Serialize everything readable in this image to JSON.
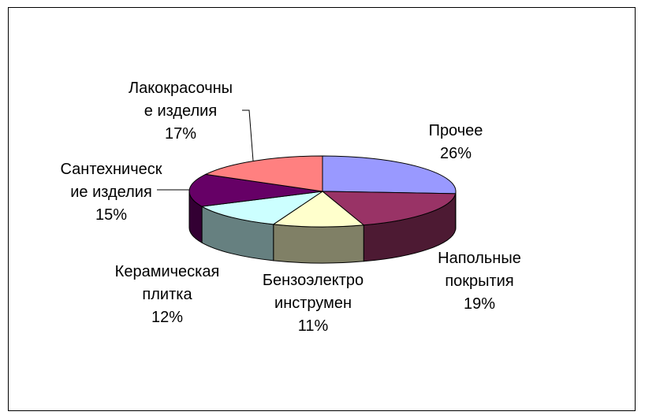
{
  "chart_data": {
    "type": "pie",
    "style": "3d",
    "title": "",
    "legend": "none",
    "slices": [
      {
        "label_lines": [
          "Прочее"
        ],
        "percent_label": "26%",
        "value": 26,
        "color": "#9999FF"
      },
      {
        "label_lines": [
          "Напольные",
          "покрытия"
        ],
        "percent_label": "19%",
        "value": 19,
        "color": "#993366"
      },
      {
        "label_lines": [
          "Бензоэлектро",
          "инструмен"
        ],
        "percent_label": "11%",
        "value": 11,
        "color": "#FFFFCC"
      },
      {
        "label_lines": [
          "Керамическая",
          "плитка"
        ],
        "percent_label": "12%",
        "value": 12,
        "color": "#CCFFFF"
      },
      {
        "label_lines": [
          "Сантехническ",
          "ие изделия"
        ],
        "percent_label": "15%",
        "value": 15,
        "color": "#660066"
      },
      {
        "label_lines": [
          "Лакокрасочны",
          "е изделия"
        ],
        "percent_label": "17%",
        "value": 17,
        "color": "#FF8080"
      }
    ]
  }
}
